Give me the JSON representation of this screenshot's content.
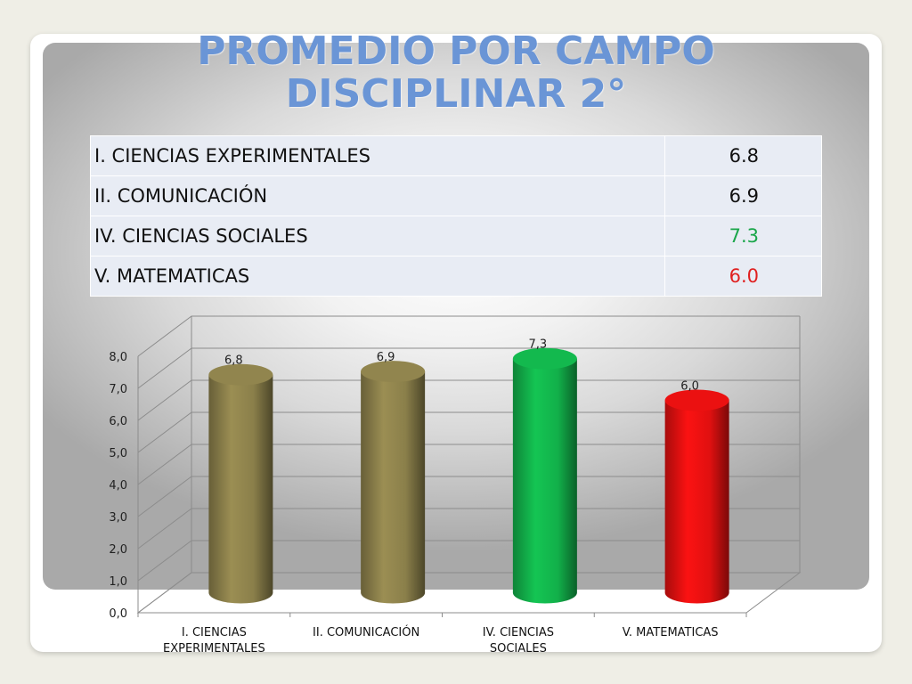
{
  "slide": {
    "title_line1": "PROMEDIO POR CAMPO",
    "title_line2": "DISCIPLINAR 2°"
  },
  "table": {
    "rows": [
      {
        "label": "I. CIENCIAS EXPERIMENTALES",
        "value": "6.8",
        "color": "#111111"
      },
      {
        "label": "II. COMUNICACIÓN",
        "value": "6.9",
        "color": "#111111"
      },
      {
        "label": "IV. CIENCIAS SOCIALES",
        "value": "7.3",
        "color": "#1aa64a"
      },
      {
        "label": "V. MATEMATICAS",
        "value": "6.0",
        "color": "#e02020"
      }
    ]
  },
  "chart_data": {
    "type": "bar",
    "style": "3d-cylinder",
    "categories": [
      [
        "I. CIENCIAS",
        "EXPERIMENTALES"
      ],
      [
        "II. COMUNICACIÓN"
      ],
      [
        "IV. CIENCIAS",
        "SOCIALES"
      ],
      [
        "V. MATEMATICAS"
      ]
    ],
    "values": [
      6.8,
      6.9,
      7.3,
      6.0
    ],
    "data_labels": [
      "6,8",
      "6,9",
      "7,3",
      "6,0"
    ],
    "bar_colors": [
      "#8a7f4a",
      "#8a7f4a",
      "#12b04a",
      "#e01010"
    ],
    "ylim": [
      0,
      8
    ],
    "yticks": [
      "0,0",
      "1,0",
      "2,0",
      "3,0",
      "4,0",
      "5,0",
      "6,0",
      "7,0",
      "8,0"
    ],
    "grid": true,
    "legend": "none"
  }
}
